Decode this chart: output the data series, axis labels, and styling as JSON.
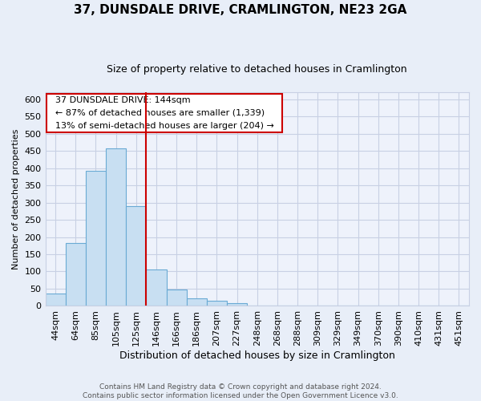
{
  "title": "37, DUNSDALE DRIVE, CRAMLINGTON, NE23 2GA",
  "subtitle": "Size of property relative to detached houses in Cramlington",
  "xlabel": "Distribution of detached houses by size in Cramlington",
  "ylabel": "Number of detached properties",
  "footer_line1": "Contains HM Land Registry data © Crown copyright and database right 2024.",
  "footer_line2": "Contains public sector information licensed under the Open Government Licence v3.0.",
  "bin_labels": [
    "44sqm",
    "64sqm",
    "85sqm",
    "105sqm",
    "125sqm",
    "146sqm",
    "166sqm",
    "186sqm",
    "207sqm",
    "227sqm",
    "248sqm",
    "268sqm",
    "288sqm",
    "309sqm",
    "329sqm",
    "349sqm",
    "370sqm",
    "390sqm",
    "410sqm",
    "431sqm",
    "451sqm"
  ],
  "bar_values": [
    35,
    183,
    393,
    458,
    290,
    105,
    48,
    22,
    15,
    8,
    2,
    1,
    0,
    0,
    0,
    0,
    0,
    0,
    0,
    0,
    0
  ],
  "bar_color": "#c8dff2",
  "bar_edge_color": "#6aaad4",
  "highlight_line_color": "#cc0000",
  "highlight_bin_index": 5,
  "annotation_title": "37 DUNSDALE DRIVE: 144sqm",
  "annotation_line1": "← 87% of detached houses are smaller (1,339)",
  "annotation_line2": "13% of semi-detached houses are larger (204) →",
  "annotation_box_color": "#ffffff",
  "annotation_box_edge": "#cc0000",
  "ylim": [
    0,
    620
  ],
  "yticks": [
    0,
    50,
    100,
    150,
    200,
    250,
    300,
    350,
    400,
    450,
    500,
    550,
    600
  ],
  "background_color": "#e8eef8",
  "plot_background": "#eef2fb",
  "grid_color": "#c8d0e4",
  "title_fontsize": 11,
  "subtitle_fontsize": 9,
  "xlabel_fontsize": 9,
  "ylabel_fontsize": 8,
  "tick_fontsize": 8,
  "annotation_fontsize": 8,
  "footer_fontsize": 6.5
}
